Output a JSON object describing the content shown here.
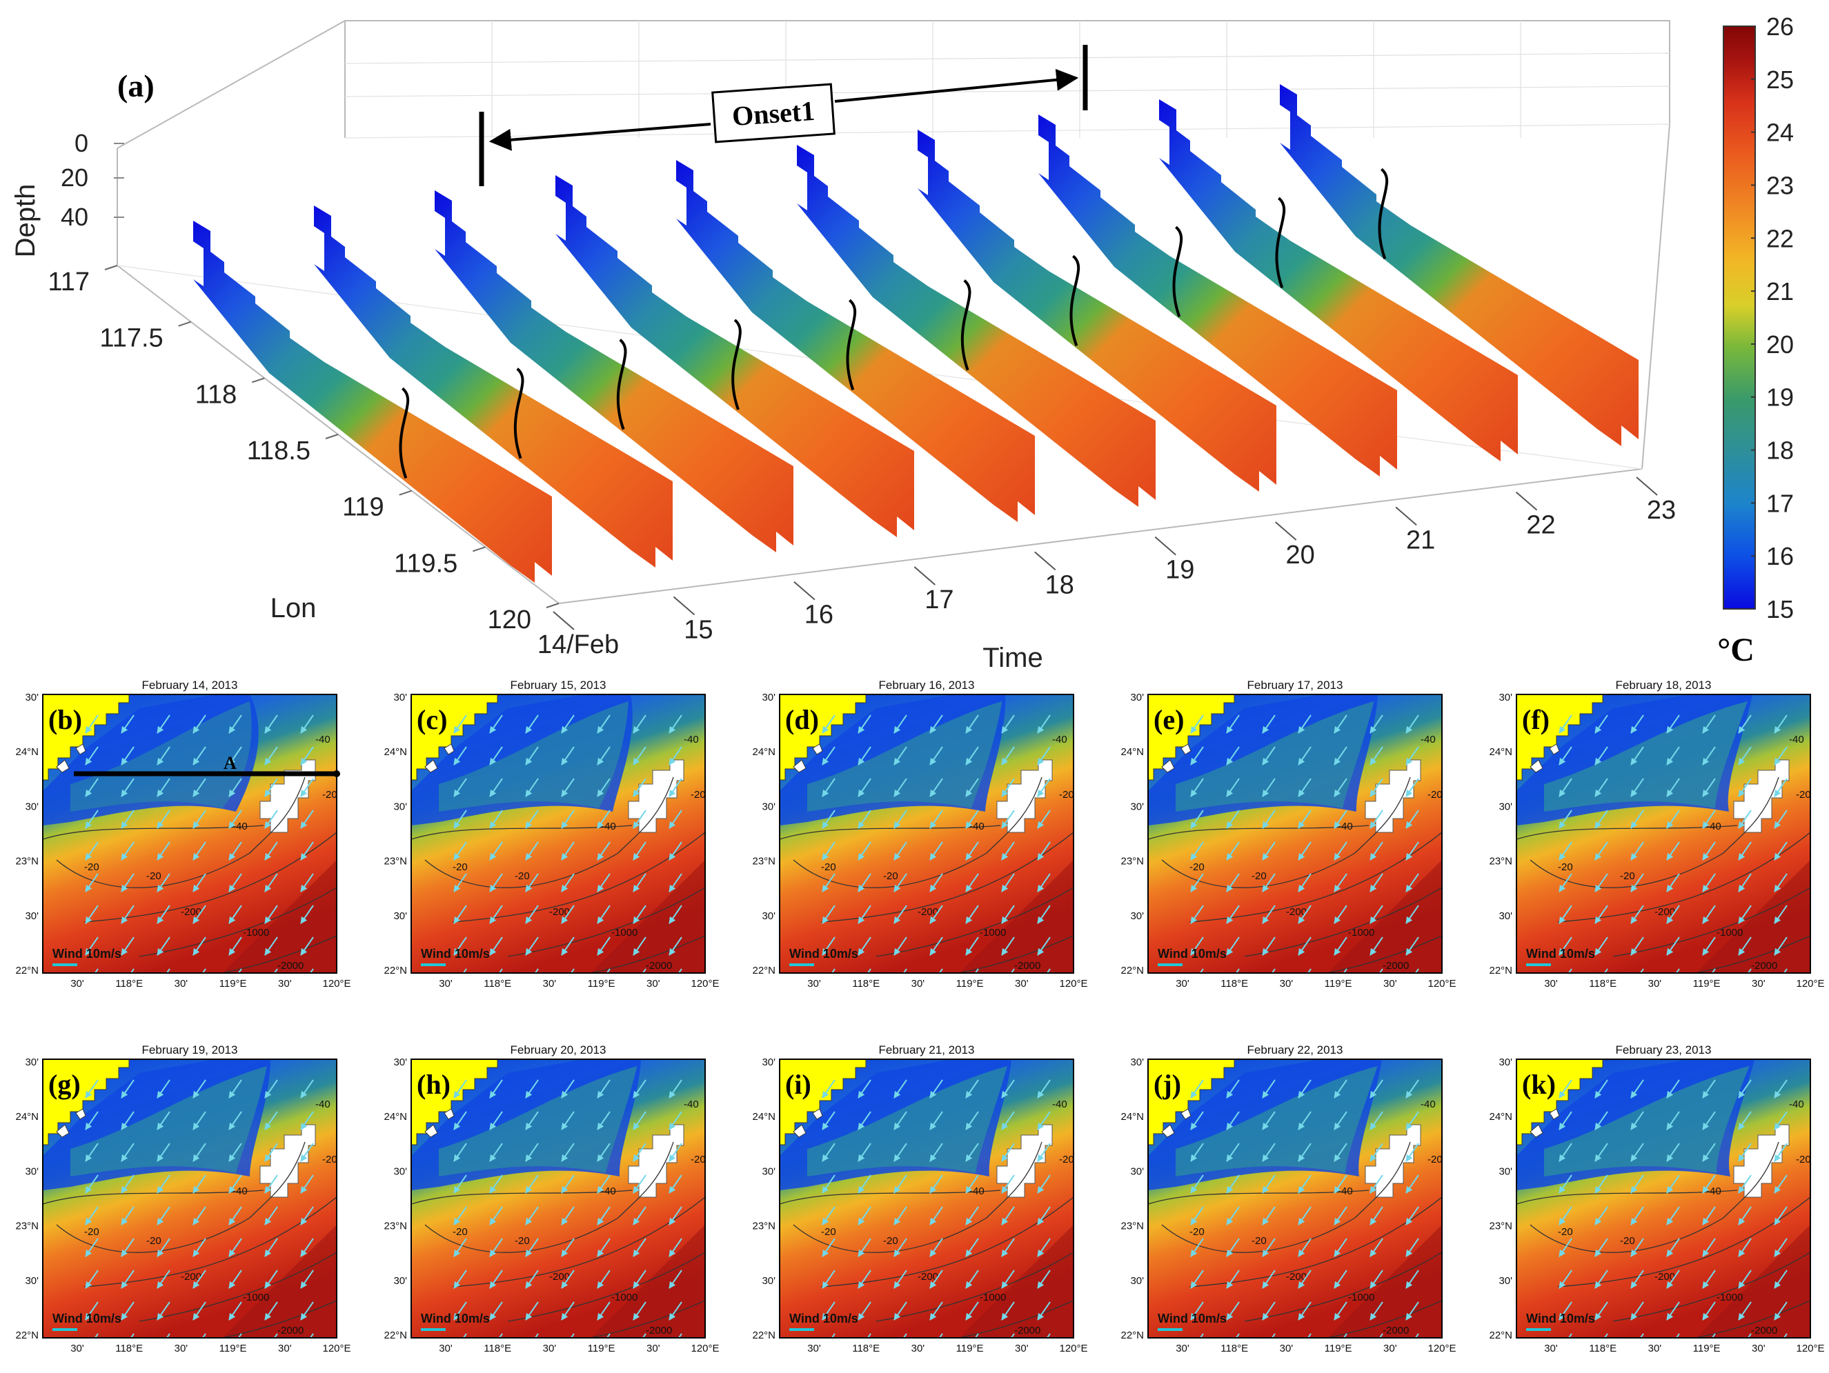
{
  "chart_data": [
    {
      "type": "3d-section-slices",
      "panel_label": "(a)",
      "annotation": "Onset1",
      "onset_range_days": [
        "16",
        "22"
      ],
      "zlabel": "Depth",
      "depth_ticks": [
        "0",
        "20",
        "40"
      ],
      "ylabel": "Lon",
      "lon_ticks": [
        "117",
        "117.5",
        "118",
        "118.5",
        "119",
        "119.5",
        "120"
      ],
      "xlabel": "Time",
      "time_ticks": [
        "14/Feb",
        "15",
        "16",
        "17",
        "18",
        "19",
        "20",
        "21",
        "22",
        "23"
      ],
      "front_lon_by_day": [
        118.75,
        118.7,
        118.55,
        118.5,
        118.45,
        118.4,
        118.3,
        118.15,
        118.0,
        117.85
      ],
      "colorbar": {
        "min": 15,
        "max": 26,
        "ticks": [
          "26",
          "25",
          "24",
          "23",
          "22",
          "21",
          "20",
          "19",
          "18",
          "17",
          "16",
          "15"
        ],
        "unit": "°C",
        "colors": [
          "#0a0adf",
          "#0d4fe6",
          "#1d84cc",
          "#2e8f9a",
          "#3a9a6a",
          "#7ab83a",
          "#d8cf2a",
          "#f2b625",
          "#f08c24",
          "#ea5b1e",
          "#d8321a",
          "#a8140f",
          "#820606"
        ]
      }
    },
    {
      "type": "map-series",
      "description_shared": {
        "lat_ticks": [
          "30'",
          "24°N",
          "30'",
          "23°N",
          "30'",
          "22°N"
        ],
        "lon_ticks": [
          "30'",
          "118°E",
          "30'",
          "119°E",
          "30'",
          "120°E"
        ],
        "wind_label": "Wind 10m/s",
        "contour_labels": [
          "-40",
          "-20",
          "-20",
          "-200",
          "-1000",
          "-2000",
          "-40",
          "-20"
        ],
        "section_line_label": "A"
      },
      "panels": [
        {
          "label": "(b)",
          "title": "February 14, 2013",
          "front_shift": 0.0
        },
        {
          "label": "(c)",
          "title": "February 15, 2013",
          "front_shift": 0.3
        },
        {
          "label": "(d)",
          "title": "February 16, 2013",
          "front_shift": 0.45
        },
        {
          "label": "(e)",
          "title": "February 17, 2013",
          "front_shift": 0.55
        },
        {
          "label": "(f)",
          "title": "February 18, 2013",
          "front_shift": 0.7
        },
        {
          "label": "(g)",
          "title": "February 19, 2013",
          "front_shift": 0.5
        },
        {
          "label": "(h)",
          "title": "February 20, 2013",
          "front_shift": 0.55
        },
        {
          "label": "(i)",
          "title": "February 21, 2013",
          "front_shift": 0.6
        },
        {
          "label": "(j)",
          "title": "February 22, 2013",
          "front_shift": 0.65
        },
        {
          "label": "(k)",
          "title": "February 23, 2013",
          "front_shift": 0.75
        }
      ]
    }
  ]
}
